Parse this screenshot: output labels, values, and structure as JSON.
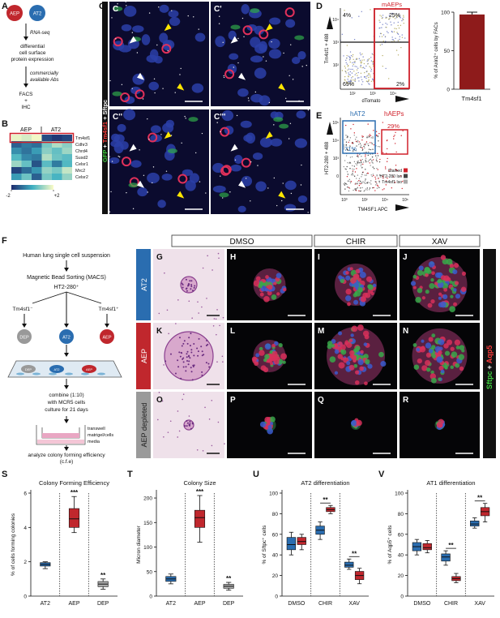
{
  "A": {
    "label": "A",
    "cells": [
      "AEP",
      "AT2"
    ],
    "method": "RNA-seq",
    "result": [
      "differential",
      "cell surface",
      "protein expression"
    ],
    "filter": [
      "commercially",
      "available Abs"
    ],
    "assays": [
      "FACS",
      "+",
      "IHC"
    ]
  },
  "B": {
    "label": "B",
    "columns": [
      "AEP",
      "AT2"
    ],
    "genes": [
      "Tm4sf1",
      "Cdhr3",
      "Chrd4",
      "Susd2",
      "Celsr1",
      "Mrc2",
      "Celsr2"
    ],
    "matrix": [
      [
        1.8,
        1.6,
        1.9,
        -1.5,
        -1.8,
        -1.6
      ],
      [
        -1.2,
        -0.8,
        -1,
        0.6,
        1.2,
        0.8
      ],
      [
        -0.5,
        -0.9,
        -0.3,
        0.8,
        0.4,
        1
      ],
      [
        0.2,
        -0.6,
        -0.8,
        1.2,
        0.5,
        0.3
      ],
      [
        1,
        0.4,
        -1.4,
        0.3,
        -0.8,
        0.2
      ],
      [
        -1.6,
        -1,
        -0.4,
        0.9,
        0.6,
        1.4
      ],
      [
        -0.3,
        0.5,
        -1.2,
        0.6,
        0.1,
        0.9
      ]
    ],
    "scale": {
      "lim": [
        -2,
        2
      ],
      "ticks": [
        -2,
        {
          "value": 2,
          "label": "+2"
        }
      ]
    }
  },
  "C": {
    "label": "C",
    "panels": [
      "C",
      "C'",
      "C''",
      "C'''"
    ],
    "stain": [
      "GFP",
      "+",
      "Tm4sf1",
      "+",
      "Sftpc"
    ]
  },
  "D": {
    "label": "D",
    "flow": {
      "gate": "mAEPs",
      "quadrants": [
        "4%",
        "25%",
        "69%",
        "2%"
      ],
      "ylabel": "Tm4sf1 + 488",
      "xlabel": "dTomato",
      "yticks": [
        "10⁴",
        "10³",
        "10²"
      ],
      "xticks": [
        "10²",
        "10³",
        "10⁴"
      ]
    },
    "bar": {
      "ylabel": "% of Axin2⁺ cells by FACs",
      "category": "Tm4sf1",
      "value": 97,
      "error": 3,
      "color": "#8e1b1b",
      "ylim": [
        0,
        100
      ],
      "yticks": [
        0,
        50,
        100
      ]
    }
  },
  "E": {
    "label": "E",
    "gates": [
      "hAT2",
      "hAEPs"
    ],
    "percents": [
      "71%",
      "29%"
    ],
    "legend": [
      "Stained",
      "HT2-280 Iso",
      "Tm4sf1 Iso"
    ],
    "ylabel": "HT2-280 + 488",
    "xlabel": "TM4SF1 APC",
    "yticks": [
      "10⁵",
      "10⁴",
      "10³",
      0
    ],
    "xticks": [
      "10⁰",
      "10²",
      "10⁴",
      "10⁶"
    ]
  },
  "F": {
    "label": "F",
    "steps": [
      "Human lung single cell suspension",
      "Magnetic Bead Sorting (MACS)",
      "HT2-280⁺"
    ],
    "fractions": [
      "Tm4sf1⁻",
      "Tm4sf1⁺"
    ],
    "cells": [
      "DEP",
      "AT2",
      "AEP"
    ],
    "culture": [
      "combine (1:10)",
      "with MCR5 cells",
      "culture for 21 days"
    ],
    "insert": [
      "transwell",
      "matrigel/cells",
      "media"
    ],
    "readout": [
      "analyze colony forming efficiency",
      "(c.f.e)"
    ]
  },
  "grid": {
    "conditions": [
      "DMSO",
      "CHIR",
      "XAV"
    ],
    "populations": [
      "AT2",
      "AEP",
      "AEP depleted"
    ],
    "panels": [
      [
        "G",
        "H",
        "I",
        "J"
      ],
      [
        "K",
        "L",
        "M",
        "N"
      ],
      [
        "O",
        "P",
        "Q",
        "R"
      ]
    ],
    "stain": [
      "Sftpc",
      "+",
      "Aqp5"
    ]
  },
  "plots": [
    {
      "label": "S",
      "title": "Colony Forming Efficiency",
      "ylabel": "% of cells forming colonies",
      "ylim": [
        0,
        6
      ],
      "yticks": [
        0,
        2,
        4,
        6
      ],
      "groups": [
        {
          "label": "AT2",
          "boxes": [
            {
              "color": "#2a6db0",
              "min": 1.6,
              "q1": 1.75,
              "median": 1.85,
              "q3": 1.95,
              "max": 2
            }
          ]
        },
        {
          "label": "AEP",
          "sig": "***",
          "boxes": [
            {
              "color": "#c0272d",
              "min": 3.7,
              "q1": 4,
              "median": 4.5,
              "q3": 5.1,
              "max": 5.8
            }
          ]
        },
        {
          "label": "DEP",
          "sig": "**",
          "boxes": [
            {
              "color": "#aaaaaa",
              "min": 0.4,
              "q1": 0.55,
              "median": 0.7,
              "q3": 0.85,
              "max": 1
            }
          ]
        }
      ]
    },
    {
      "label": "T",
      "title": "Colony Size",
      "ylabel": "Micron diameter",
      "ylim": [
        0,
        210
      ],
      "yticks": [
        0,
        50,
        100,
        150,
        200
      ],
      "groups": [
        {
          "label": "AT2",
          "boxes": [
            {
              "color": "#2a6db0",
              "min": 25,
              "q1": 30,
              "median": 35,
              "q3": 40,
              "max": 45
            }
          ]
        },
        {
          "label": "AEP",
          "sig": "***",
          "boxes": [
            {
              "color": "#c0272d",
              "min": 110,
              "q1": 140,
              "median": 160,
              "q3": 175,
              "max": 205
            }
          ]
        },
        {
          "label": "DEP",
          "sig": "**",
          "boxes": [
            {
              "color": "#aaaaaa",
              "min": 12,
              "q1": 16,
              "median": 20,
              "q3": 24,
              "max": 28
            }
          ]
        }
      ]
    },
    {
      "label": "U",
      "title": "AT2 differentiation",
      "ylabel": "% of Sftpc⁺ cells",
      "ylim": [
        0,
        100
      ],
      "yticks": [
        0,
        20,
        40,
        60,
        80,
        100
      ],
      "groups": [
        {
          "label": "DMSO",
          "boxes": [
            {
              "color": "#2a6db0",
              "min": 40,
              "q1": 45,
              "median": 50,
              "q3": 57,
              "max": 62
            },
            {
              "color": "#c0272d",
              "min": 45,
              "q1": 50,
              "median": 53,
              "q3": 57,
              "max": 60
            }
          ]
        },
        {
          "label": "CHIR",
          "sig": "**",
          "boxes": [
            {
              "color": "#2a6db0",
              "min": 55,
              "q1": 60,
              "median": 64,
              "q3": 68,
              "max": 72
            },
            {
              "color": "#c0272d",
              "min": 80,
              "q1": 82,
              "median": 84,
              "q3": 86,
              "max": 88
            }
          ]
        },
        {
          "label": "XAV",
          "sig": "**",
          "boxes": [
            {
              "color": "#2a6db0",
              "min": 26,
              "q1": 28,
              "median": 30,
              "q3": 33,
              "max": 36
            },
            {
              "color": "#c0272d",
              "min": 12,
              "q1": 16,
              "median": 20,
              "q3": 24,
              "max": 27
            }
          ]
        }
      ]
    },
    {
      "label": "V",
      "title": "AT1 differentiation",
      "ylabel": "% of Aqp5⁺ cells",
      "ylim": [
        0,
        100
      ],
      "yticks": [
        0,
        20,
        40,
        60,
        80,
        100
      ],
      "groups": [
        {
          "label": "DMSO",
          "boxes": [
            {
              "color": "#2a6db0",
              "min": 40,
              "q1": 44,
              "median": 48,
              "q3": 52,
              "max": 55
            },
            {
              "color": "#c0272d",
              "min": 42,
              "q1": 45,
              "median": 47,
              "q3": 51,
              "max": 54
            }
          ]
        },
        {
          "label": "CHIR",
          "sig": "**",
          "boxes": [
            {
              "color": "#2a6db0",
              "min": 30,
              "q1": 34,
              "median": 38,
              "q3": 41,
              "max": 44
            },
            {
              "color": "#c0272d",
              "min": 13,
              "q1": 15,
              "median": 17,
              "q3": 19,
              "max": 22
            }
          ]
        },
        {
          "label": "XAV",
          "sig": "**",
          "boxes": [
            {
              "color": "#2a6db0",
              "min": 66,
              "q1": 68,
              "median": 70,
              "q3": 73,
              "max": 76
            },
            {
              "color": "#c0272d",
              "min": 72,
              "q1": 78,
              "median": 82,
              "q3": 86,
              "max": 90
            }
          ]
        }
      ]
    }
  ]
}
